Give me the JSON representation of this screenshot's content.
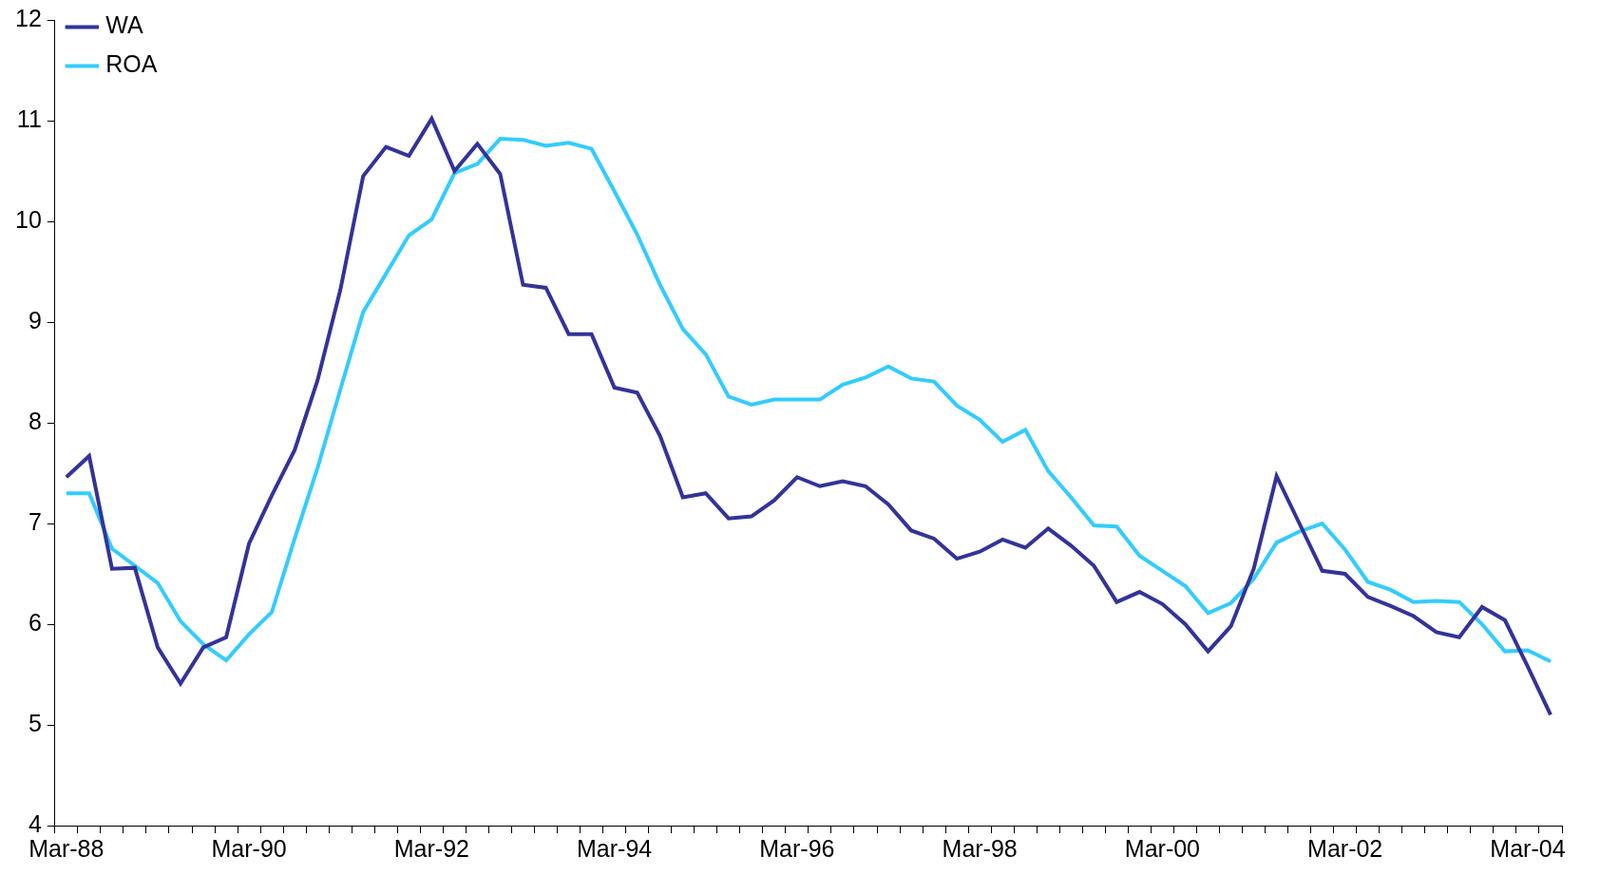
{
  "chart_data": {
    "type": "line",
    "categories": [
      "Mar-88",
      null,
      null,
      null,
      null,
      null,
      null,
      null,
      "Mar-90",
      null,
      null,
      null,
      null,
      null,
      null,
      null,
      "Mar-92",
      null,
      null,
      null,
      null,
      null,
      null,
      null,
      "Mar-94",
      null,
      null,
      null,
      null,
      null,
      null,
      null,
      "Mar-96",
      null,
      null,
      null,
      null,
      null,
      null,
      null,
      "Mar-98",
      null,
      null,
      null,
      null,
      null,
      null,
      null,
      "Mar-00",
      null,
      null,
      null,
      null,
      null,
      null,
      null,
      "Mar-02",
      null,
      null,
      null,
      null,
      null,
      null,
      null,
      "Mar-04",
      null
    ],
    "series": [
      {
        "name": "WA",
        "color": "#333399",
        "marker": "none",
        "line_style": "solid",
        "values": [
          7.46,
          7.67,
          6.55,
          6.56,
          5.77,
          5.41,
          5.77,
          5.87,
          6.8,
          7.28,
          7.73,
          8.42,
          9.32,
          10.45,
          10.74,
          10.65,
          11.02,
          10.5,
          10.77,
          10.47,
          9.37,
          9.34,
          8.88,
          8.88,
          8.35,
          8.3,
          7.87,
          7.26,
          7.3,
          7.05,
          7.07,
          7.23,
          7.46,
          7.37,
          7.42,
          7.37,
          7.19,
          6.93,
          6.85,
          6.65,
          6.72,
          6.84,
          6.76,
          6.95,
          6.78,
          6.58,
          6.22,
          6.32,
          6.2,
          6.0,
          5.73,
          5.98,
          6.55,
          7.47,
          7.0,
          6.53,
          6.5,
          6.27,
          6.18,
          6.08,
          5.92,
          5.87,
          6.17,
          6.04,
          5.58,
          5.1
        ]
      },
      {
        "name": "ROA",
        "color": "#33CCFF",
        "marker": "none",
        "line_style": "solid",
        "values": [
          7.3,
          7.3,
          6.75,
          6.58,
          6.41,
          6.03,
          5.8,
          5.64,
          5.9,
          6.12,
          6.85,
          7.55,
          8.33,
          9.1,
          9.48,
          9.86,
          10.02,
          10.48,
          10.57,
          10.82,
          10.81,
          10.75,
          10.78,
          10.72,
          10.3,
          9.87,
          9.37,
          8.93,
          8.68,
          8.26,
          8.18,
          8.23,
          8.23,
          8.23,
          8.38,
          8.45,
          8.56,
          8.44,
          8.41,
          8.17,
          8.03,
          7.81,
          7.93,
          7.52,
          7.26,
          6.98,
          6.97,
          6.68,
          6.53,
          6.38,
          6.11,
          6.21,
          6.45,
          6.81,
          6.92,
          7.0,
          6.74,
          6.42,
          6.34,
          6.22,
          6.23,
          6.22,
          6.0,
          5.73,
          5.74,
          5.63
        ]
      }
    ],
    "ylim": [
      4,
      12
    ],
    "yticks": [
      4,
      5,
      6,
      7,
      8,
      9,
      10,
      11,
      12
    ],
    "grid": false,
    "legend": "upper left"
  }
}
